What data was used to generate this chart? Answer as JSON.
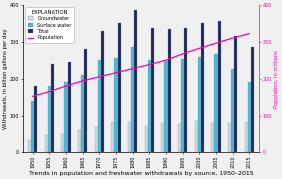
{
  "years": [
    1950,
    1955,
    1960,
    1965,
    1970,
    1975,
    1980,
    1985,
    1990,
    1995,
    2000,
    2005,
    2010,
    2015
  ],
  "groundwater": [
    34,
    47,
    50,
    60,
    68,
    82,
    83,
    73,
    79,
    77,
    84,
    79,
    79,
    82
  ],
  "surface_water": [
    140,
    180,
    190,
    210,
    250,
    255,
    285,
    250,
    248,
    252,
    258,
    268,
    225,
    192
  ],
  "total": [
    180,
    240,
    245,
    280,
    328,
    350,
    385,
    338,
    335,
    338,
    350,
    355,
    315,
    285
  ],
  "population": [
    152,
    165,
    180,
    194,
    205,
    216,
    227,
    238,
    250,
    267,
    282,
    296,
    310,
    322
  ],
  "ylabel_left": "Withdrawals, in billion gallons per day",
  "ylabel_right": "Population, in millions",
  "xlabel": "Trends in population and freshwater withdrawals by source, 1950–2015",
  "ylim_left": [
    0,
    400
  ],
  "ylim_right": [
    0,
    400
  ],
  "yticks_left": [
    0,
    100,
    200,
    300,
    400
  ],
  "yticks_right": [
    0,
    100,
    200,
    300,
    400
  ],
  "color_groundwater": "#c8dce8",
  "color_surface_water": "#4db8d8",
  "color_total": "#1a2a5e",
  "color_population": "#ff00aa",
  "color_background": "#f0f0f0",
  "legend_labels": [
    "Groundwater",
    "Surface water",
    "Total",
    "Population"
  ],
  "bar_width": 0.55,
  "title_fontsize": 4.5,
  "axis_fontsize": 3.8,
  "tick_fontsize": 3.5,
  "legend_fontsize": 3.5,
  "legend_title_fontsize": 3.8
}
